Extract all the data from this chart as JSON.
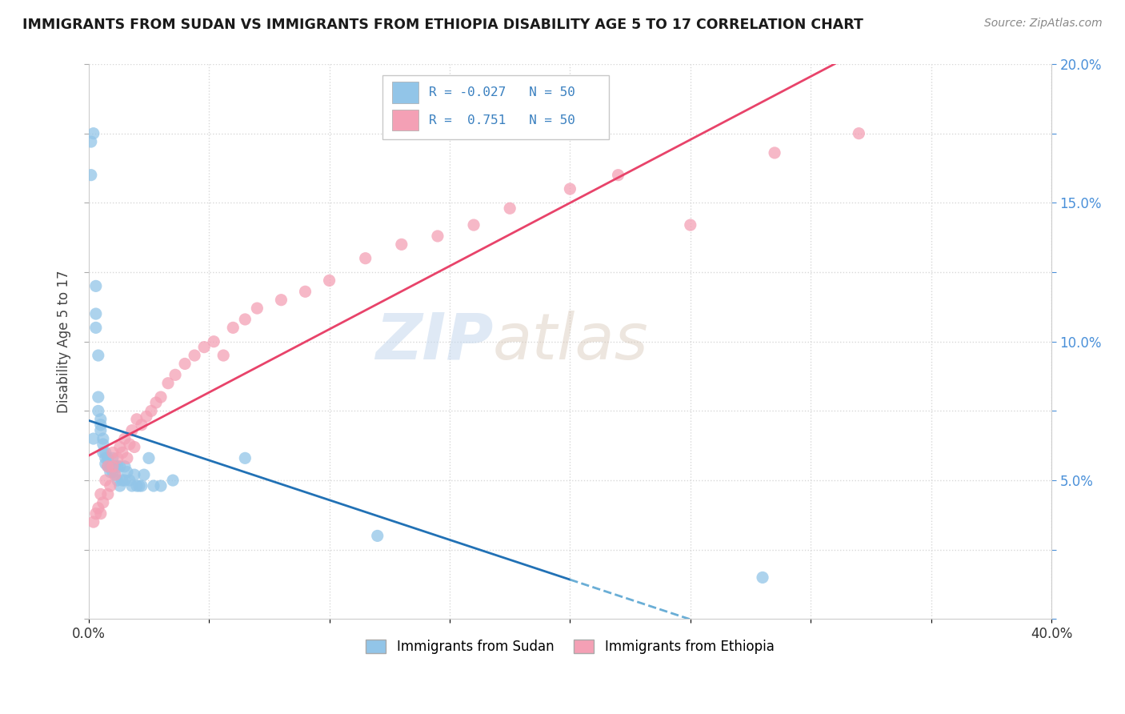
{
  "title": "IMMIGRANTS FROM SUDAN VS IMMIGRANTS FROM ETHIOPIA DISABILITY AGE 5 TO 17 CORRELATION CHART",
  "source": "Source: ZipAtlas.com",
  "ylabel": "Disability Age 5 to 17",
  "xlim": [
    0.0,
    0.4
  ],
  "ylim": [
    0.0,
    0.2
  ],
  "legend_r_sudan": "-0.027",
  "legend_n_sudan": "50",
  "legend_r_ethiopia": "0.751",
  "legend_n_ethiopia": "50",
  "color_sudan": "#92C5E8",
  "color_ethiopia": "#F4A0B5",
  "trendline_sudan_solid_color": "#2171b5",
  "trendline_sudan_dash_color": "#6aaed6",
  "trendline_ethiopia_color": "#e8436a",
  "watermark_zip": "ZIP",
  "watermark_atlas": "atlas",
  "background_color": "#ffffff",
  "grid_color": "#d8d8d8",
  "sudan_x": [
    0.001,
    0.001,
    0.002,
    0.002,
    0.003,
    0.003,
    0.003,
    0.004,
    0.004,
    0.004,
    0.005,
    0.005,
    0.005,
    0.006,
    0.006,
    0.006,
    0.007,
    0.007,
    0.007,
    0.008,
    0.008,
    0.009,
    0.009,
    0.01,
    0.01,
    0.01,
    0.011,
    0.011,
    0.012,
    0.012,
    0.013,
    0.013,
    0.014,
    0.015,
    0.015,
    0.016,
    0.017,
    0.018,
    0.019,
    0.02,
    0.021,
    0.022,
    0.023,
    0.025,
    0.027,
    0.03,
    0.035,
    0.065,
    0.12,
    0.28
  ],
  "sudan_y": [
    0.172,
    0.16,
    0.175,
    0.065,
    0.12,
    0.11,
    0.105,
    0.095,
    0.08,
    0.075,
    0.072,
    0.07,
    0.068,
    0.065,
    0.063,
    0.06,
    0.06,
    0.058,
    0.056,
    0.058,
    0.055,
    0.055,
    0.053,
    0.058,
    0.055,
    0.053,
    0.055,
    0.052,
    0.055,
    0.05,
    0.055,
    0.048,
    0.05,
    0.055,
    0.05,
    0.053,
    0.05,
    0.048,
    0.052,
    0.048,
    0.048,
    0.048,
    0.052,
    0.058,
    0.048,
    0.048,
    0.05,
    0.058,
    0.03,
    0.015
  ],
  "ethiopia_x": [
    0.002,
    0.003,
    0.004,
    0.005,
    0.005,
    0.006,
    0.007,
    0.008,
    0.008,
    0.009,
    0.01,
    0.01,
    0.011,
    0.012,
    0.013,
    0.014,
    0.015,
    0.016,
    0.017,
    0.018,
    0.019,
    0.02,
    0.022,
    0.024,
    0.026,
    0.028,
    0.03,
    0.033,
    0.036,
    0.04,
    0.044,
    0.048,
    0.052,
    0.056,
    0.06,
    0.065,
    0.07,
    0.08,
    0.09,
    0.1,
    0.115,
    0.13,
    0.145,
    0.16,
    0.175,
    0.2,
    0.22,
    0.25,
    0.285,
    0.32
  ],
  "ethiopia_y": [
    0.035,
    0.038,
    0.04,
    0.038,
    0.045,
    0.042,
    0.05,
    0.045,
    0.055,
    0.048,
    0.055,
    0.06,
    0.052,
    0.058,
    0.062,
    0.06,
    0.065,
    0.058,
    0.063,
    0.068,
    0.062,
    0.072,
    0.07,
    0.073,
    0.075,
    0.078,
    0.08,
    0.085,
    0.088,
    0.092,
    0.095,
    0.098,
    0.1,
    0.095,
    0.105,
    0.108,
    0.112,
    0.115,
    0.118,
    0.122,
    0.13,
    0.135,
    0.138,
    0.142,
    0.148,
    0.155,
    0.16,
    0.142,
    0.168,
    0.175
  ]
}
